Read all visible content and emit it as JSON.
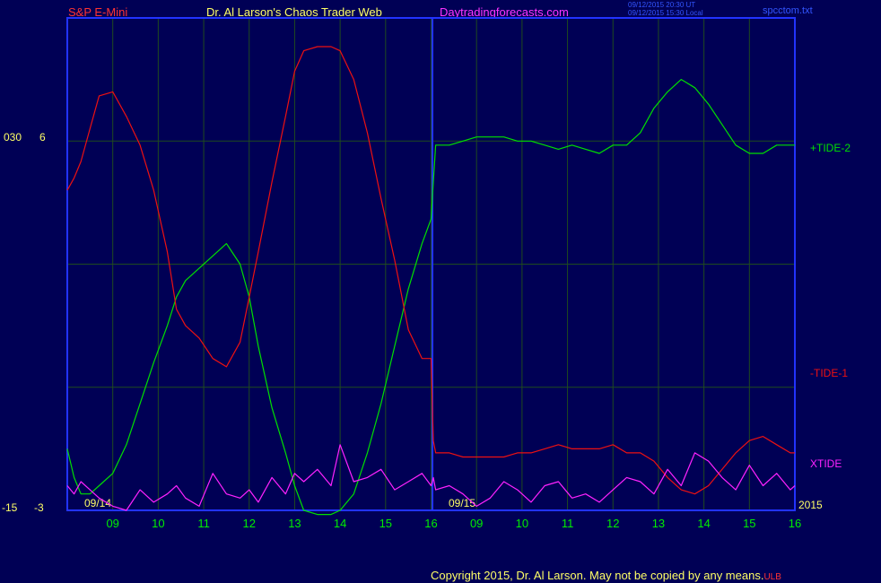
{
  "header": {
    "symbol": "S&P E-Mini",
    "title": "Dr. Al Larson's Chaos Trader Web",
    "site": "Daytradingforecasts.com",
    "utc_line": "09/12/2015 20:30 UT",
    "local_line": "09/12/2015 15:30 Local",
    "file": "spcctom.txt"
  },
  "footer": {
    "copyright": "Copyright 2015, Dr. Al Larson. May not be copied by any means.",
    "mark": "ULB"
  },
  "colors": {
    "background": "#000055",
    "frame": "#2233ff",
    "grid": "#1f4a1f",
    "tide_plus": "#00e000",
    "tide_minus": "#ee1111",
    "xtide": "#ff22ff",
    "axis_text": "#00ee00",
    "header_red": "#ff3333",
    "header_yellow": "#ffff66",
    "header_magenta": "#ff33ff",
    "header_blue": "#3355ff"
  },
  "chart_data": {
    "type": "line",
    "x_ticks": [
      "09",
      "10",
      "11",
      "12",
      "13",
      "14",
      "15",
      "16",
      "09",
      "10",
      "11",
      "12",
      "13",
      "14",
      "15",
      "16"
    ],
    "date_labels": [
      "09/14",
      "09/15"
    ],
    "year_label": "2015",
    "y_left_labels": {
      "outer_top": "030",
      "inner_top": "6",
      "outer_bottom": "-15",
      "inner_bottom": "-3"
    },
    "x": [
      8.0,
      8.15,
      8.3,
      8.5,
      8.7,
      9.0,
      9.3,
      9.6,
      9.9,
      10.2,
      10.4,
      10.6,
      10.9,
      11.2,
      11.5,
      11.8,
      12.0,
      12.2,
      12.5,
      12.8,
      13.0,
      13.2,
      13.5,
      13.8,
      14.0,
      14.3,
      14.6,
      14.9,
      15.2,
      15.5,
      15.8,
      16.0,
      16.05,
      16.1,
      16.4,
      16.7,
      17.0,
      17.3,
      17.6,
      17.9,
      18.2,
      18.5,
      18.8,
      19.1,
      19.4,
      19.7,
      20.0,
      20.3,
      20.6,
      20.9,
      21.2,
      21.5,
      21.8,
      22.1,
      22.4,
      22.7,
      23.0,
      23.3,
      23.6,
      23.9,
      24.0
    ],
    "series": [
      {
        "name": "+TIDE-2",
        "values": [
          -1.5,
          -2.2,
          -2.6,
          -2.6,
          -2.4,
          -2.1,
          -1.4,
          -0.4,
          0.6,
          1.5,
          2.2,
          2.6,
          2.9,
          3.2,
          3.5,
          3.0,
          2.2,
          1.0,
          -0.5,
          -1.6,
          -2.4,
          -3.0,
          -3.1,
          -3.1,
          -3.0,
          -2.6,
          -1.6,
          -0.4,
          1.0,
          2.4,
          3.5,
          4.1,
          5.0,
          5.9,
          5.9,
          6.0,
          6.1,
          6.1,
          6.1,
          6.0,
          6.0,
          5.9,
          5.8,
          5.9,
          5.8,
          5.7,
          5.9,
          5.9,
          6.2,
          6.8,
          7.2,
          7.5,
          7.3,
          6.9,
          6.4,
          5.9,
          5.7,
          5.7,
          5.9,
          5.9,
          5.9
        ]
      },
      {
        "name": "-TIDE-1",
        "values": [
          4.8,
          5.1,
          5.5,
          6.3,
          7.1,
          7.2,
          6.6,
          5.9,
          4.8,
          3.3,
          1.9,
          1.5,
          1.2,
          0.7,
          0.5,
          1.1,
          2.2,
          3.3,
          5.0,
          6.6,
          7.7,
          8.2,
          8.3,
          8.3,
          8.2,
          7.5,
          6.2,
          4.6,
          3.1,
          1.4,
          0.7,
          0.7,
          -1.3,
          -1.6,
          -1.6,
          -1.7,
          -1.7,
          -1.7,
          -1.7,
          -1.6,
          -1.6,
          -1.5,
          -1.4,
          -1.5,
          -1.5,
          -1.5,
          -1.4,
          -1.6,
          -1.6,
          -1.8,
          -2.2,
          -2.5,
          -2.6,
          -2.4,
          -2.0,
          -1.6,
          -1.3,
          -1.2,
          -1.4,
          -1.6,
          -1.6
        ]
      },
      {
        "name": "XTIDE",
        "values": [
          -2.4,
          -2.6,
          -2.3,
          -2.5,
          -2.7,
          -2.9,
          -3.0,
          -2.5,
          -2.8,
          -2.6,
          -2.4,
          -2.7,
          -2.9,
          -2.1,
          -2.6,
          -2.7,
          -2.5,
          -2.8,
          -2.2,
          -2.6,
          -2.1,
          -2.3,
          -2.0,
          -2.4,
          -1.4,
          -2.3,
          -2.2,
          -2.0,
          -2.5,
          -2.3,
          -2.1,
          -2.4,
          -2.2,
          -2.5,
          -2.4,
          -2.6,
          -2.9,
          -2.7,
          -2.3,
          -2.5,
          -2.8,
          -2.4,
          -2.3,
          -2.7,
          -2.6,
          -2.8,
          -2.5,
          -2.2,
          -2.3,
          -2.6,
          -2.0,
          -2.4,
          -1.6,
          -1.8,
          -2.2,
          -2.5,
          -1.9,
          -2.4,
          -2.1,
          -2.5,
          -2.4
        ]
      }
    ],
    "ylim": [
      -3,
      9
    ],
    "xlim": [
      8.0,
      24.0
    ],
    "grid": true,
    "legend": "right, labels beside line ends"
  }
}
